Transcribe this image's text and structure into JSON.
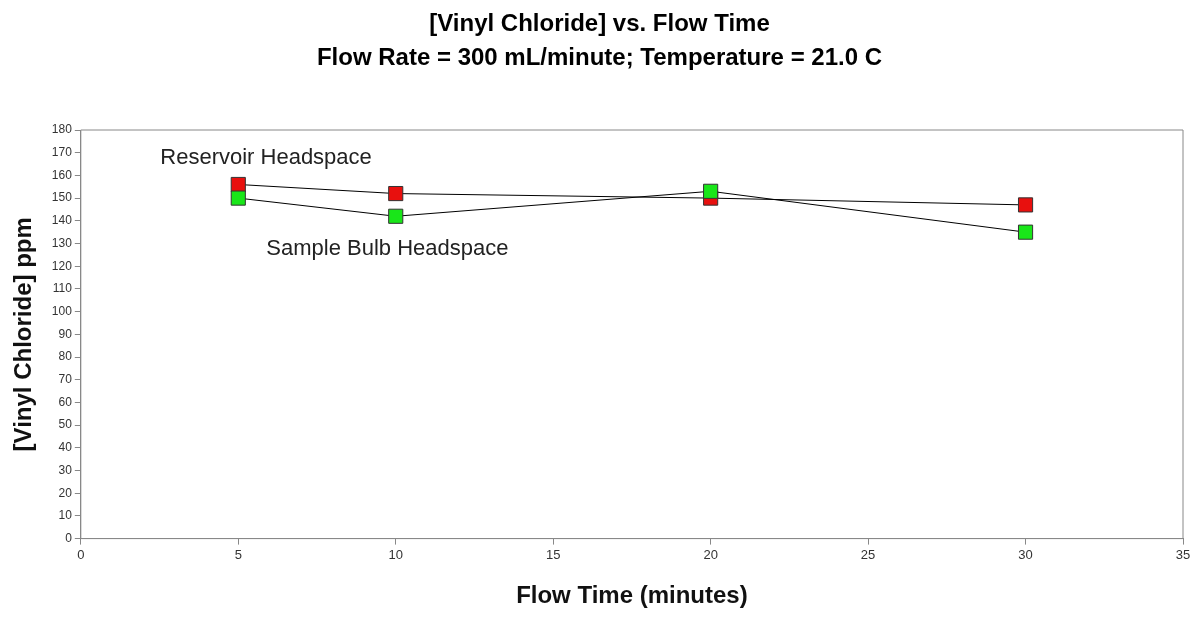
{
  "chart_data": {
    "type": "line",
    "title": "[Vinyl Chloride] vs. Flow Time",
    "subtitle": "Flow Rate = 300 mL/minute; Temperature = 21.0 C",
    "xlabel": "Flow Time (minutes)",
    "ylabel": "[Vinyl Chloride] ppm",
    "x": [
      5,
      10,
      20,
      30
    ],
    "series": [
      {
        "name": "Reservoir Headspace",
        "color": "#e8100e",
        "values": [
          156,
          152,
          150,
          147
        ]
      },
      {
        "name": "Sample Bulb Headspace",
        "color": "#19e619",
        "values": [
          150,
          142,
          153,
          135
        ]
      }
    ],
    "xlim": [
      0,
      35
    ],
    "xticks": [
      0,
      5,
      10,
      15,
      20,
      25,
      30,
      35
    ],
    "ylim": [
      0,
      180
    ],
    "yticks": [
      0,
      10,
      20,
      30,
      40,
      50,
      60,
      70,
      80,
      90,
      100,
      110,
      120,
      130,
      140,
      150,
      160,
      170,
      180
    ],
    "grid": false,
    "legend": false,
    "marker": "square",
    "line_style": "solid"
  }
}
